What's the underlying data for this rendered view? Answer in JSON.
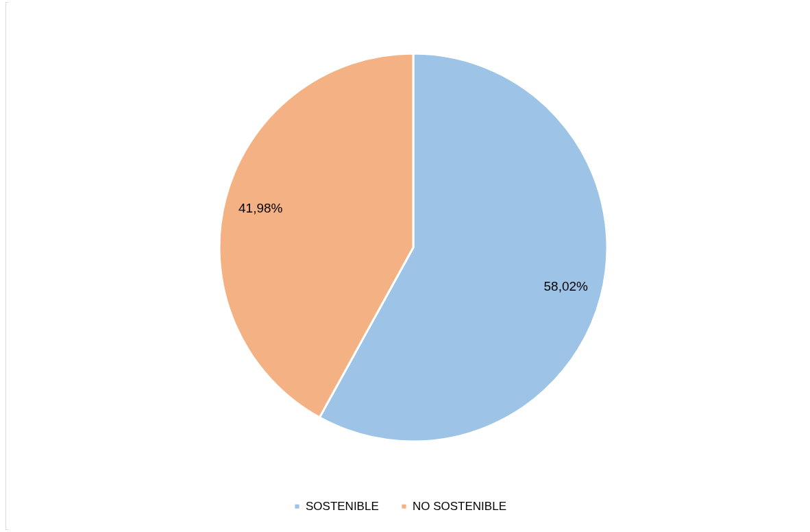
{
  "chart_data": {
    "type": "pie",
    "categories": [
      "SOSTENIBLE",
      "NO SOSTENIBLE"
    ],
    "values": [
      58.02,
      41.98
    ],
    "colors": [
      "#9dc3e6",
      "#f4b183"
    ],
    "value_labels": [
      "58,02%",
      "41,98%"
    ],
    "legend": "bottom"
  }
}
